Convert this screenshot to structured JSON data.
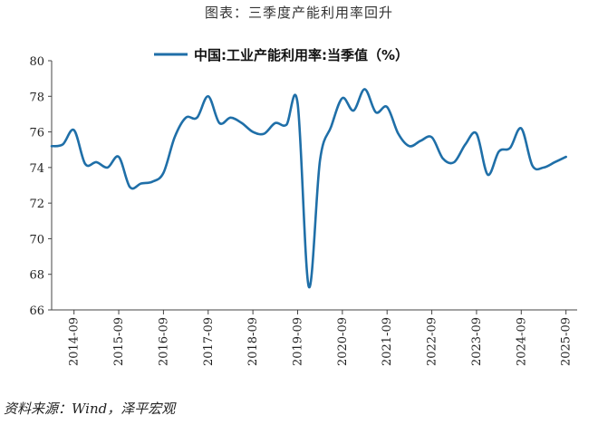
{
  "figure_title": "图表：三季度产能利用率回升",
  "source": "资料来源：Wind，泽平宏观",
  "chart_data": {
    "type": "line",
    "title": "",
    "xlabel": "",
    "ylabel": "",
    "ylim": [
      66,
      80
    ],
    "yticks": [
      66,
      68,
      70,
      72,
      74,
      76,
      78,
      80
    ],
    "xticks": [
      "2014-09",
      "2015-09",
      "2016-09",
      "2017-09",
      "2018-09",
      "2019-09",
      "2020-09",
      "2021-09",
      "2022-09",
      "2023-09",
      "2024-09",
      "2025-09"
    ],
    "grid": false,
    "legend_position": "top-center",
    "line_color": "#1f6fa8",
    "x": [
      "2014-03",
      "2014-06",
      "2014-09",
      "2014-12",
      "2015-03",
      "2015-06",
      "2015-09",
      "2015-12",
      "2016-03",
      "2016-06",
      "2016-09",
      "2016-12",
      "2017-03",
      "2017-06",
      "2017-09",
      "2017-12",
      "2018-03",
      "2018-06",
      "2018-09",
      "2018-12",
      "2019-03",
      "2019-06",
      "2019-09",
      "2019-12",
      "2020-03",
      "2020-06",
      "2020-09",
      "2020-12",
      "2021-03",
      "2021-06",
      "2021-09",
      "2021-12",
      "2022-03",
      "2022-06",
      "2022-09",
      "2022-12",
      "2023-03",
      "2023-06",
      "2023-09",
      "2023-12",
      "2024-03",
      "2024-06",
      "2024-09",
      "2024-12",
      "2025-03",
      "2025-06",
      "2025-09"
    ],
    "series": [
      {
        "name": "中国:工业产能利用率:当季值（%）",
        "values": [
          75.2,
          75.3,
          76.1,
          74.2,
          74.3,
          74.0,
          74.6,
          72.9,
          73.1,
          73.2,
          73.7,
          75.7,
          76.8,
          76.8,
          78.0,
          76.5,
          76.8,
          76.5,
          76.0,
          75.9,
          76.5,
          76.4,
          77.6,
          67.3,
          74.4,
          76.3,
          77.9,
          77.2,
          78.4,
          77.1,
          77.4,
          75.9,
          75.2,
          75.5,
          75.7,
          74.5,
          74.3,
          75.3,
          75.9,
          73.6,
          74.9,
          75.1,
          76.2,
          74.1,
          74.0,
          74.3,
          74.6
        ]
      }
    ]
  }
}
